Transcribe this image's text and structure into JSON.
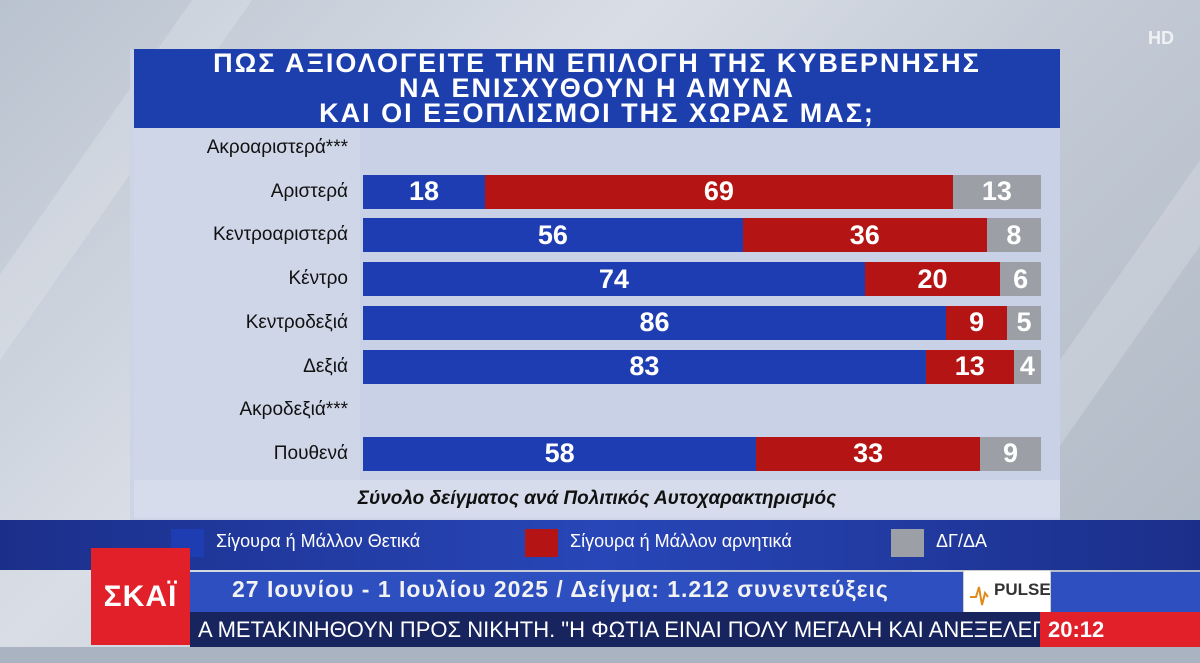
{
  "channel": {
    "watermark": "HD",
    "logo_text": "ΣΚΑΪ",
    "clock": "20:12"
  },
  "title_lines": [
    "ΠΩΣ ΑΞΙΟΛΟΓΕΙΤΕ ΤΗΝ ΕΠΙΛΟΓΗ ΤΗΣ ΚΥΒΕΡΝΗΣΗΣ",
    "ΝΑ ΕΝΙΣΧΥΘΟΥΝ Η ΑΜΥΝΑ",
    "ΚΑΙ ΟΙ ΕΞΟΠΛΙΣΜΟΙ ΤΗΣ ΧΩΡΑΣ ΜΑΣ;"
  ],
  "subtitle": "Σύνολο δείγματος ανά Πολιτικός Αυτοχαρακτηρισμός",
  "footer": {
    "date_sample": "27 Ιουνίου - 1 Ιουλίου 2025 / Δείγμα: 1.212 συνεντεύξεις",
    "pollster_logo": "PULSE",
    "ticker": "Α ΜΕΤΑΚΙΝΗΘΟΥΝ ΠΡΟΣ ΝΙΚΗΤΗ. \"Η ΦΩΤΙΑ ΕΙΝΑΙ ΠΟΛΥ ΜΕΓΑΛΗ ΚΑΙ ΑΝΕΞΕΛΕΓΚΤΗ, ΣΕ ΔΑΣΟΣ"
  },
  "colors": {
    "positive": "#1f3db3",
    "negative": "#b51414",
    "dk": "#9c9fa6"
  },
  "chart_data": {
    "type": "bar",
    "orientation": "horizontal",
    "stacked": true,
    "categories": [
      "Ακροαριστερά***",
      "Αριστερά",
      "Κεντροαριστερά",
      "Κέντρο",
      "Κεντροδεξιά",
      "Δεξιά",
      "Ακροδεξιά***",
      "Πουθενά"
    ],
    "series": [
      {
        "name": "Σίγουρα ή Μάλλον Θετικά",
        "color": "#1f3db3",
        "values": [
          null,
          18,
          56,
          74,
          86,
          83,
          null,
          58
        ]
      },
      {
        "name": "Σίγουρα ή Μάλλον αρνητικά",
        "color": "#b51414",
        "values": [
          null,
          69,
          36,
          20,
          9,
          13,
          null,
          33
        ]
      },
      {
        "name": "ΔΓ/ΔΑ",
        "color": "#9c9fa6",
        "values": [
          null,
          13,
          8,
          6,
          5,
          4,
          null,
          9
        ]
      }
    ],
    "xlim": [
      0,
      100
    ],
    "legend_position": "bottom"
  }
}
